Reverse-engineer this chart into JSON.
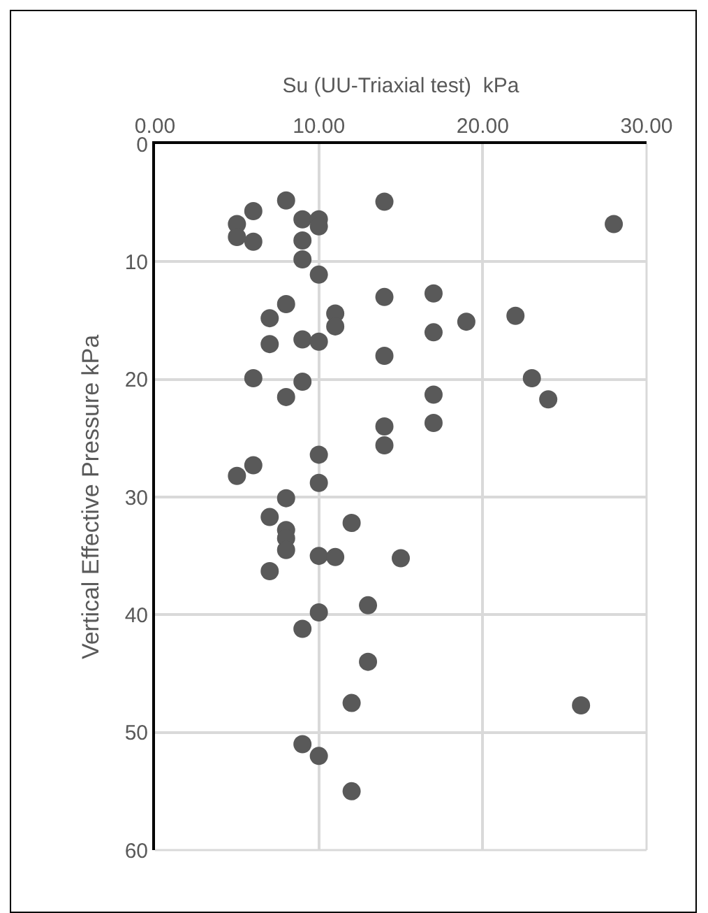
{
  "chart_data": {
    "type": "scatter",
    "xlabel": "Su (UU-Triaxial test)  kPa",
    "ylabel": "Vertical Effective Pressure kPa",
    "xlim": [
      0,
      30
    ],
    "xticks": [
      {
        "value": 0,
        "label": "0.00"
      },
      {
        "value": 10,
        "label": "10.00"
      },
      {
        "value": 20,
        "label": "20.00"
      },
      {
        "value": 30,
        "label": "30.00"
      }
    ],
    "ylim": [
      60,
      0
    ],
    "yticks": [
      0,
      10,
      20,
      30,
      40,
      50,
      60
    ],
    "grid": true,
    "marker": "circle",
    "series": [
      {
        "color": "#595959",
        "x": [
          8,
          14,
          6,
          5,
          5,
          6,
          9,
          10,
          10,
          9,
          9,
          28,
          10,
          14,
          17,
          8,
          7,
          11,
          11,
          19,
          22,
          17,
          7,
          9,
          10,
          14,
          6,
          9,
          23,
          8,
          17,
          24,
          17,
          14,
          14,
          10,
          6,
          5,
          10,
          8,
          7,
          12,
          8,
          8,
          8,
          10,
          11,
          15,
          7,
          13,
          10,
          9,
          13,
          12,
          26,
          9,
          10,
          12
        ],
        "values": [
          4.8,
          4.9,
          5.7,
          6.8,
          7.9,
          8.3,
          6.4,
          6.4,
          7.0,
          8.2,
          9.8,
          6.8,
          11.1,
          13.0,
          12.7,
          13.6,
          14.8,
          14.4,
          15.5,
          15.1,
          14.6,
          16.0,
          17.0,
          16.6,
          16.8,
          18.0,
          19.9,
          20.2,
          19.9,
          21.5,
          21.3,
          21.7,
          23.7,
          24.0,
          25.6,
          26.4,
          27.3,
          28.2,
          28.8,
          30.1,
          31.7,
          32.2,
          32.8,
          33.5,
          34.5,
          35.0,
          35.1,
          35.2,
          36.3,
          39.2,
          39.8,
          41.2,
          44.0,
          47.5,
          47.7,
          51.0,
          52.0,
          55.0
        ]
      }
    ]
  }
}
